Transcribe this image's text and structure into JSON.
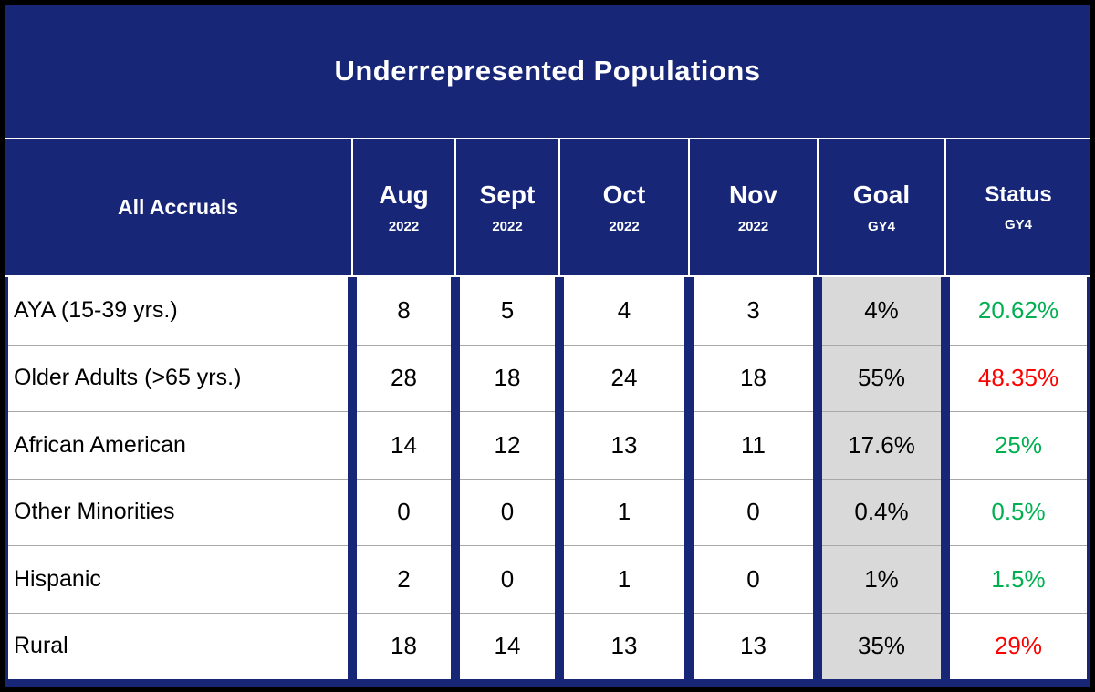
{
  "title": "Underrepresented Populations",
  "table": {
    "header": {
      "first_column": "All Accruals",
      "columns": [
        {
          "label": "Aug",
          "sublabel": "2022"
        },
        {
          "label": "Sept",
          "sublabel": "2022"
        },
        {
          "label": "Oct",
          "sublabel": "2022"
        },
        {
          "label": "Nov",
          "sublabel": "2022"
        },
        {
          "label": "Goal",
          "sublabel": "GY4"
        },
        {
          "label": "Status",
          "sublabel": "GY4"
        }
      ]
    },
    "rows": [
      {
        "label": "AYA (15-39 yrs.)",
        "aug": "8",
        "sept": "5",
        "oct": "4",
        "nov": "3",
        "goal": "4%",
        "status": "20.62%",
        "status_class": "status-green"
      },
      {
        "label": "Older Adults (>65 yrs.)",
        "aug": "28",
        "sept": "18",
        "oct": "24",
        "nov": "18",
        "goal": "55%",
        "status": "48.35%",
        "status_class": "status-red"
      },
      {
        "label": "African American",
        "aug": "14",
        "sept": "12",
        "oct": "13",
        "nov": "11",
        "goal": "17.6%",
        "status": "25%",
        "status_class": "status-green"
      },
      {
        "label": "Other Minorities",
        "aug": "0",
        "sept": "0",
        "oct": "1",
        "nov": "0",
        "goal": "0.4%",
        "status": "0.5%",
        "status_class": "status-green"
      },
      {
        "label": "Hispanic",
        "aug": "2",
        "sept": "0",
        "oct": "1",
        "nov": "0",
        "goal": "1%",
        "status": "1.5%",
        "status_class": "status-green"
      },
      {
        "label": "Rural",
        "aug": "18",
        "sept": "14",
        "oct": "13",
        "nov": "13",
        "goal": "35%",
        "status": "29%",
        "status_class": "status-red"
      }
    ],
    "colors": {
      "navy_background": "#182677",
      "goal_column_background": "#d9d9d9",
      "status_green": "#00b050",
      "status_red": "#ff0000",
      "header_text": "#ffffff",
      "body_text": "#000000"
    }
  },
  "chart_data": {
    "type": "table",
    "title": "Underrepresented Populations",
    "columns": [
      "All Accruals",
      "Aug 2022",
      "Sept 2022",
      "Oct 2022",
      "Nov 2022",
      "Goal GY4",
      "Status GY4"
    ],
    "rows": [
      [
        "AYA (15-39 yrs.)",
        8,
        5,
        4,
        3,
        "4%",
        "20.62%"
      ],
      [
        "Older Adults (>65 yrs.)",
        28,
        18,
        24,
        18,
        "55%",
        "48.35%"
      ],
      [
        "African American",
        14,
        12,
        13,
        11,
        "17.6%",
        "25%"
      ],
      [
        "Other Minorities",
        0,
        0,
        1,
        0,
        "0.4%",
        "0.5%"
      ],
      [
        "Hispanic",
        2,
        0,
        1,
        0,
        "1%",
        "1.5%"
      ],
      [
        "Rural",
        18,
        14,
        13,
        13,
        "35%",
        "29%"
      ]
    ],
    "status_colors": [
      "green",
      "red",
      "green",
      "green",
      "green",
      "red"
    ],
    "legend_position": "none",
    "grid": true
  }
}
